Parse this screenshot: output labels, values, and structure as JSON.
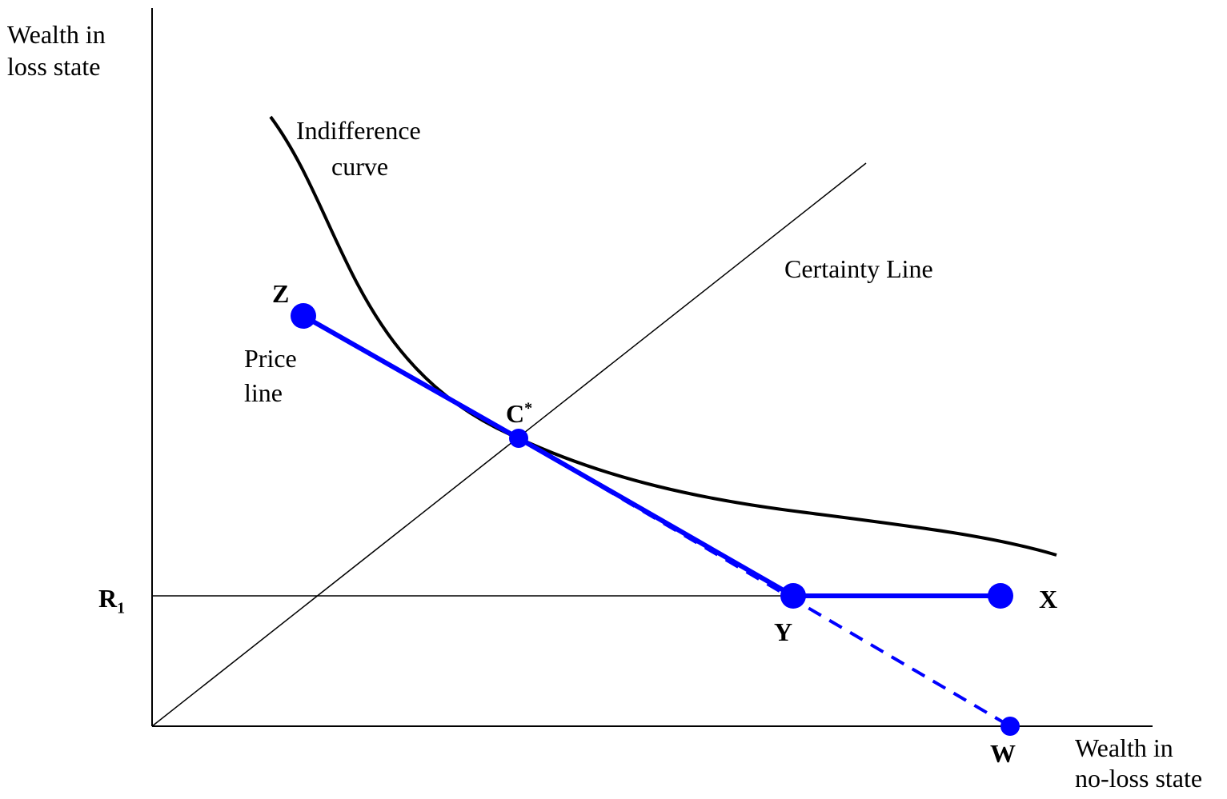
{
  "axes": {
    "y_label_line1": "Wealth in",
    "y_label_line2": "loss state",
    "x_label_line1": "Wealth in",
    "x_label_line2": "no-loss state"
  },
  "curves": {
    "indifference_line1": "Indifference",
    "indifference_line2": "curve",
    "certainty_line": "Certainty Line",
    "price_line1": "Price",
    "price_line2": "line"
  },
  "points": {
    "Z": "Z",
    "C_base": "C",
    "C_sup": "*",
    "Y": "Y",
    "X": "X",
    "W": "W",
    "R_base": "R",
    "R_sub": "1"
  },
  "colors": {
    "axis": "#000000",
    "indifference_curve": "#000000",
    "price_line": "#0000ff"
  }
}
